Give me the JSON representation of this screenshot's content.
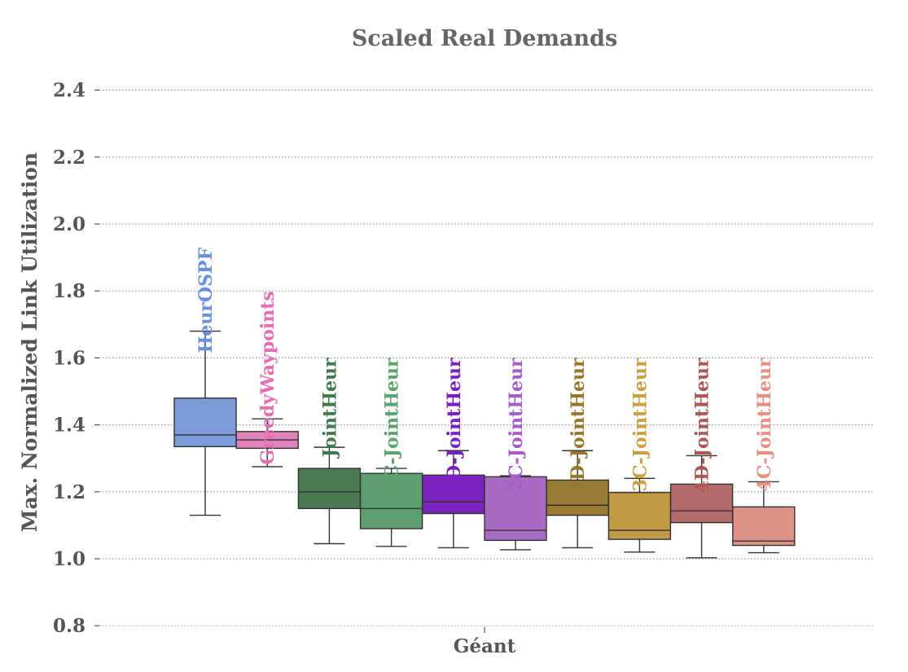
{
  "chart_data": {
    "type": "box",
    "title": "Scaled Real Demands",
    "xlabel": "",
    "ylabel": "Max. Normalized Link Utilization",
    "categories": [
      "Géant"
    ],
    "ylim": [
      0.8,
      2.45
    ],
    "yticks": [
      "0.8",
      "1.0",
      "1.2",
      "1.4",
      "1.6",
      "1.8",
      "2.0",
      "2.2",
      "2.4"
    ],
    "ytick_values": [
      0.8,
      1.0,
      1.2,
      1.4,
      1.6,
      1.8,
      2.0,
      2.2,
      2.4
    ],
    "grid": true,
    "series": [
      {
        "name": "HeurOSPF",
        "color": "#7b9bd8",
        "label_color": "#6b8fdf",
        "whislo": 1.13,
        "q1": 1.335,
        "med": 1.37,
        "q3": 1.48,
        "whishi": 1.68,
        "label_y": 1.93
      },
      {
        "name": "GreedyWaypoints",
        "color": "#e283bb",
        "label_color": "#e56db1",
        "whislo": 1.275,
        "q1": 1.33,
        "med": 1.355,
        "q3": 1.38,
        "whishi": 1.418,
        "label_y": 1.8
      },
      {
        "name": "JointHeur",
        "color": "#4a7b55",
        "label_color": "#3e7a4c",
        "whislo": 1.045,
        "q1": 1.15,
        "med": 1.2,
        "q3": 1.27,
        "whishi": 1.333,
        "label_y": 1.6
      },
      {
        "name": "1C-JointHeur",
        "color": "#5d9f6f",
        "label_color": "#5aa56c",
        "whislo": 1.037,
        "q1": 1.09,
        "med": 1.15,
        "q3": 1.255,
        "whishi": 1.27,
        "label_y": 1.6
      },
      {
        "name": "2D-JointHeur",
        "color": "#7a23be",
        "label_color": "#7a1fc4",
        "whislo": 1.033,
        "q1": 1.135,
        "med": 1.17,
        "q3": 1.25,
        "whishi": 1.323,
        "label_y": 1.6
      },
      {
        "name": "2C-JointHeur",
        "color": "#a86ac2",
        "label_color": "#a65dcc",
        "whislo": 1.027,
        "q1": 1.055,
        "med": 1.085,
        "q3": 1.245,
        "whishi": 1.248,
        "label_y": 1.6
      },
      {
        "name": "3D-JointHeur",
        "color": "#9a7a35",
        "label_color": "#98772d",
        "whislo": 1.033,
        "q1": 1.13,
        "med": 1.16,
        "q3": 1.235,
        "whishi": 1.323,
        "label_y": 1.6
      },
      {
        "name": "3C-JointHeur",
        "color": "#bf9b45",
        "label_color": "#cca040",
        "whislo": 1.02,
        "q1": 1.058,
        "med": 1.085,
        "q3": 1.198,
        "whishi": 1.24,
        "label_y": 1.6
      },
      {
        "name": "4D-JointHeur",
        "color": "#b36b6b",
        "label_color": "#ad5757",
        "whislo": 1.003,
        "q1": 1.108,
        "med": 1.143,
        "q3": 1.223,
        "whishi": 1.308,
        "label_y": 1.6
      },
      {
        "name": "4C-JointHeur",
        "color": "#de9286",
        "label_color": "#e88f83",
        "whislo": 1.018,
        "q1": 1.04,
        "med": 1.053,
        "q3": 1.155,
        "whishi": 1.23,
        "label_y": 1.6
      }
    ]
  }
}
